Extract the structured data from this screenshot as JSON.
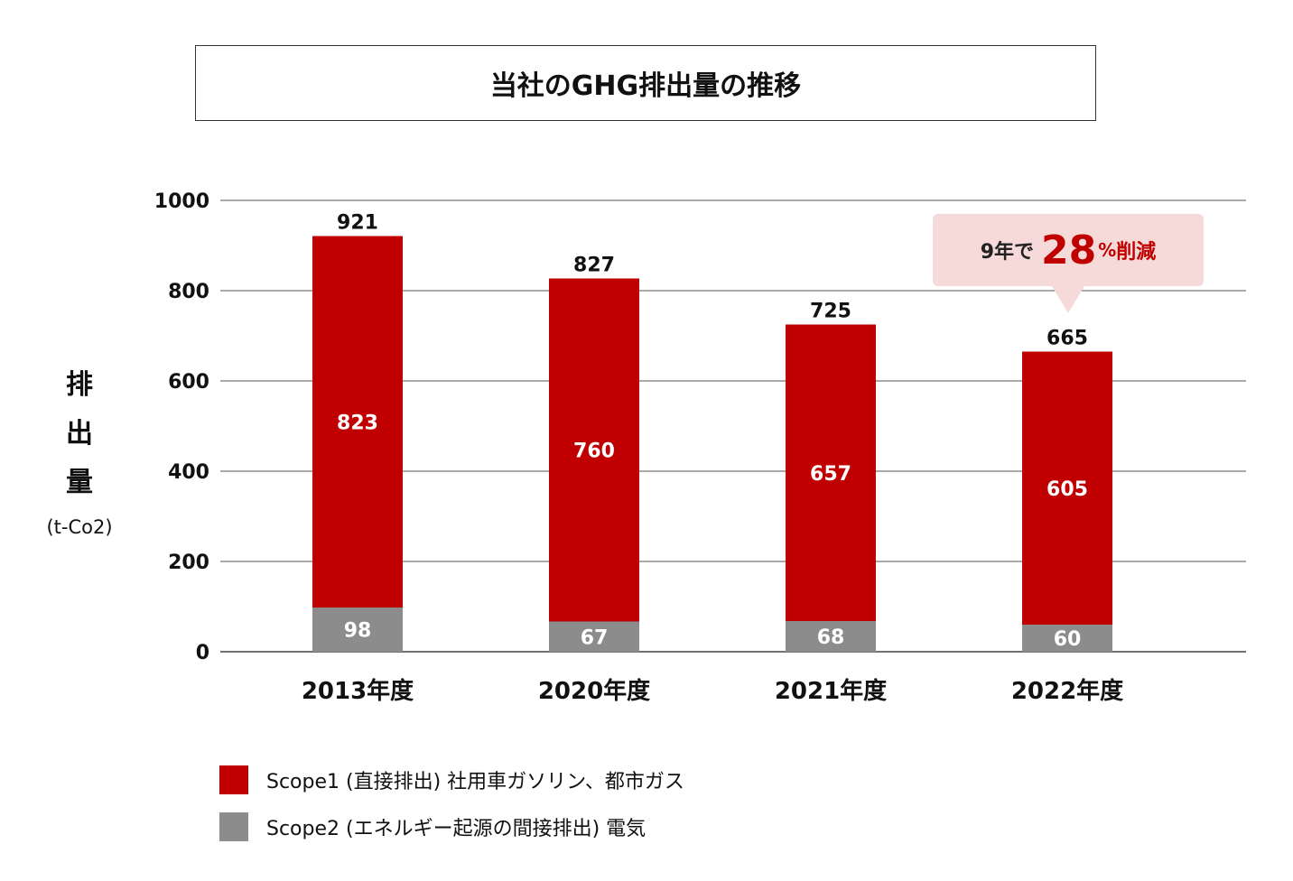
{
  "chart_data": {
    "type": "bar",
    "stacked": true,
    "title": "当社のGHG排出量の推移",
    "ylabel_chars": [
      "排",
      "出",
      "量"
    ],
    "yunit": "(t-Co2)",
    "ylim": [
      0,
      1000
    ],
    "yticks": [
      0,
      200,
      400,
      600,
      800,
      1000
    ],
    "grid": true,
    "categories": [
      "2013年度",
      "2020年度",
      "2021年度",
      "2022年度"
    ],
    "series": [
      {
        "name": "Scope2 (エネルギー起源の間接排出)  電気",
        "color": "#8c8c8c",
        "values": [
          98,
          67,
          68,
          60
        ]
      },
      {
        "name": "Scope1 (直接排出) 社用車ガソリン、都市ガス",
        "color": "#c00000",
        "values": [
          823,
          760,
          657,
          605
        ]
      }
    ],
    "totals": [
      921,
      827,
      725,
      665
    ],
    "legend_position": "bottom-left",
    "annotation": {
      "pre": "9年で",
      "num": "28",
      "pct": "%",
      "post": "削減"
    }
  }
}
